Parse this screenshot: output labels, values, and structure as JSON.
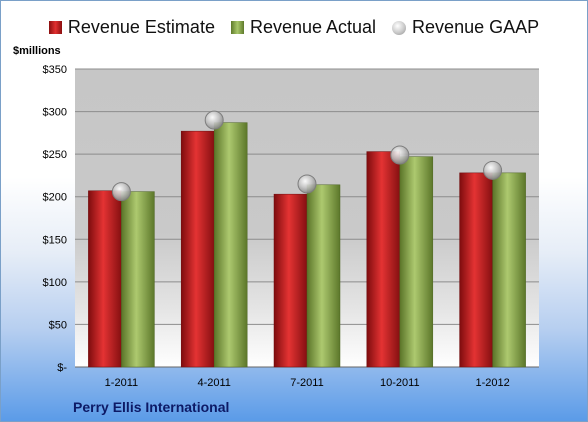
{
  "legend": {
    "estimate": "Revenue Estimate",
    "actual": "Revenue Actual",
    "gaap": "Revenue GAAP"
  },
  "unit_label": "$millions",
  "company": "Perry Ellis International",
  "colors": {
    "estimate": "#c8171a",
    "actual": "#8fac50",
    "gaap": "#b8b8b8",
    "plot_bg": "#c9c9c9"
  },
  "chart_data": {
    "type": "bar",
    "categories": [
      "1-2011",
      "4-2011",
      "7-2011",
      "10-2011",
      "1-2012"
    ],
    "series": [
      {
        "name": "Revenue Estimate",
        "values": [
          207,
          277,
          203,
          253,
          228
        ]
      },
      {
        "name": "Revenue Actual",
        "values": [
          206,
          287,
          214,
          247,
          228
        ]
      },
      {
        "name": "Revenue GAAP",
        "values": [
          206,
          290,
          215,
          249,
          231
        ]
      }
    ],
    "ylabel": "$millions",
    "ylim": [
      0,
      350
    ],
    "yticks": [
      0,
      50,
      100,
      150,
      200,
      250,
      300,
      350
    ],
    "ytick_labels": [
      "$-",
      "$50",
      "$100",
      "$150",
      "$200",
      "$250",
      "$300",
      "$350"
    ],
    "grid": true,
    "legend_position": "top"
  }
}
